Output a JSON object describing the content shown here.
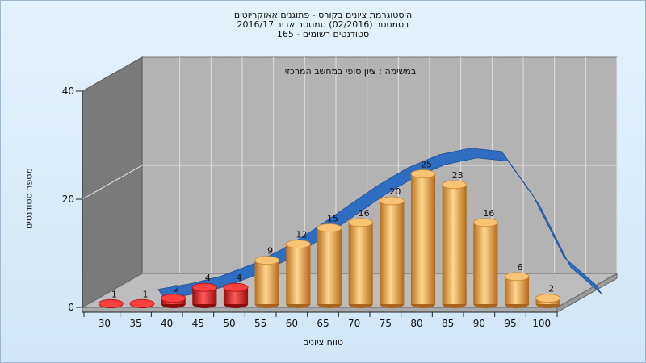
{
  "title_lines": [
    "היסטוגרמת ציונים בקורס - פתוגנים אאוקריוטים",
    "בסמסטר  (02/2016)  סמסטר אביב 2016/17",
    "סטודנטים רשומים - 165"
  ],
  "chart_data": {
    "type": "bar",
    "subtitle": "במשימה : ציון סופי במחשב המרכזי",
    "xlabel": "טווח ציונים",
    "ylabel": "מספר סטודנטים",
    "ylim": [
      0,
      40
    ],
    "yticks": [
      0,
      20,
      40
    ],
    "categories": [
      "30",
      "35",
      "40",
      "45",
      "50",
      "55",
      "60",
      "65",
      "70",
      "75",
      "80",
      "85",
      "90",
      "95",
      "100"
    ],
    "values": [
      1,
      1,
      2,
      4,
      4,
      9,
      12,
      15,
      16,
      20,
      25,
      23,
      16,
      6,
      2
    ],
    "bar_colors": [
      "#e01818",
      "#e01818",
      "#e01818",
      "#e01818",
      "#e01818",
      "#e8a144",
      "#e8a144",
      "#e8a144",
      "#e8a144",
      "#e8a144",
      "#e8a144",
      "#e8a144",
      "#e8a144",
      "#e8a144",
      "#e8a144"
    ],
    "curve": {
      "label": "normal-distribution-curve",
      "color": "#2f6dc0",
      "points": [
        [
          35,
          1.1
        ],
        [
          40,
          2.1
        ],
        [
          45,
          3.5
        ],
        [
          50,
          5.7
        ],
        [
          55,
          8.6
        ],
        [
          60,
          12.2
        ],
        [
          65,
          16.2
        ],
        [
          70,
          20.2
        ],
        [
          75,
          23.6
        ],
        [
          80,
          26.0
        ],
        [
          85,
          27.2
        ],
        [
          90,
          26.6
        ],
        [
          95,
          18.5
        ],
        [
          100,
          7.0
        ],
        [
          105,
          2.0
        ]
      ]
    },
    "grid": true,
    "legend": "none",
    "style": "3d"
  }
}
